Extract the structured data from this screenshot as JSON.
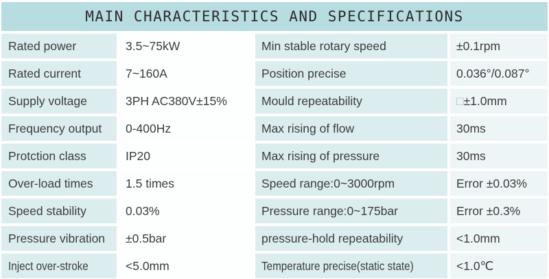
{
  "title": "MAIN CHARACTERISTICS AND SPECIFICATIONS",
  "colors": {
    "header_bg": "#b7dde1",
    "label_cell_bg": "#dcedf0",
    "left_value_cell_bg": "#fdfefe",
    "right_value_cell_bg": "#eef5f6",
    "text": "#3c3c3c",
    "title_text": "#2b2b2b"
  },
  "table": {
    "rows": [
      {
        "l_label": "Rated power",
        "l_value": "3.5~75kW",
        "r_label": "Min stable rotary speed",
        "r_value": "±0.1rpm"
      },
      {
        "l_label": "Rated current",
        "l_value": "7~160A",
        "r_label": "Position precise",
        "r_value": "0.036°/0.087°"
      },
      {
        "l_label": "Supply voltage",
        "l_value": "3PH AC380V±15%",
        "r_label": "Mould repeatability",
        "r_value_box": "□",
        "r_value": "±1.0mm"
      },
      {
        "l_label": "Frequency output",
        "l_value": "0-400Hz",
        "r_label": "Max rising of flow",
        "r_value": "30ms"
      },
      {
        "l_label": "Protction class",
        "l_value": "IP20",
        "r_label": "Max rising of pressure",
        "r_value": "30ms"
      },
      {
        "l_label": "Over-load times",
        "l_value": "1.5 times",
        "r_label": "Speed range:0~3000rpm",
        "r_value": "Error ±0.03%"
      },
      {
        "l_label": "Speed stability",
        "l_value": "0.03%",
        "r_label": "Pressure range:0~175bar",
        "r_value": "Error ±0.3%"
      },
      {
        "l_label": "Pressure vibration",
        "l_value": "±0.5bar",
        "r_label": "pressure-hold repeatability",
        "r_value": "<1.0mm"
      },
      {
        "l_label": "Inject over-stroke",
        "l_value": "<5.0mm",
        "r_label": "Temperature precise(static state)",
        "r_value": "<1.0℃"
      }
    ]
  }
}
